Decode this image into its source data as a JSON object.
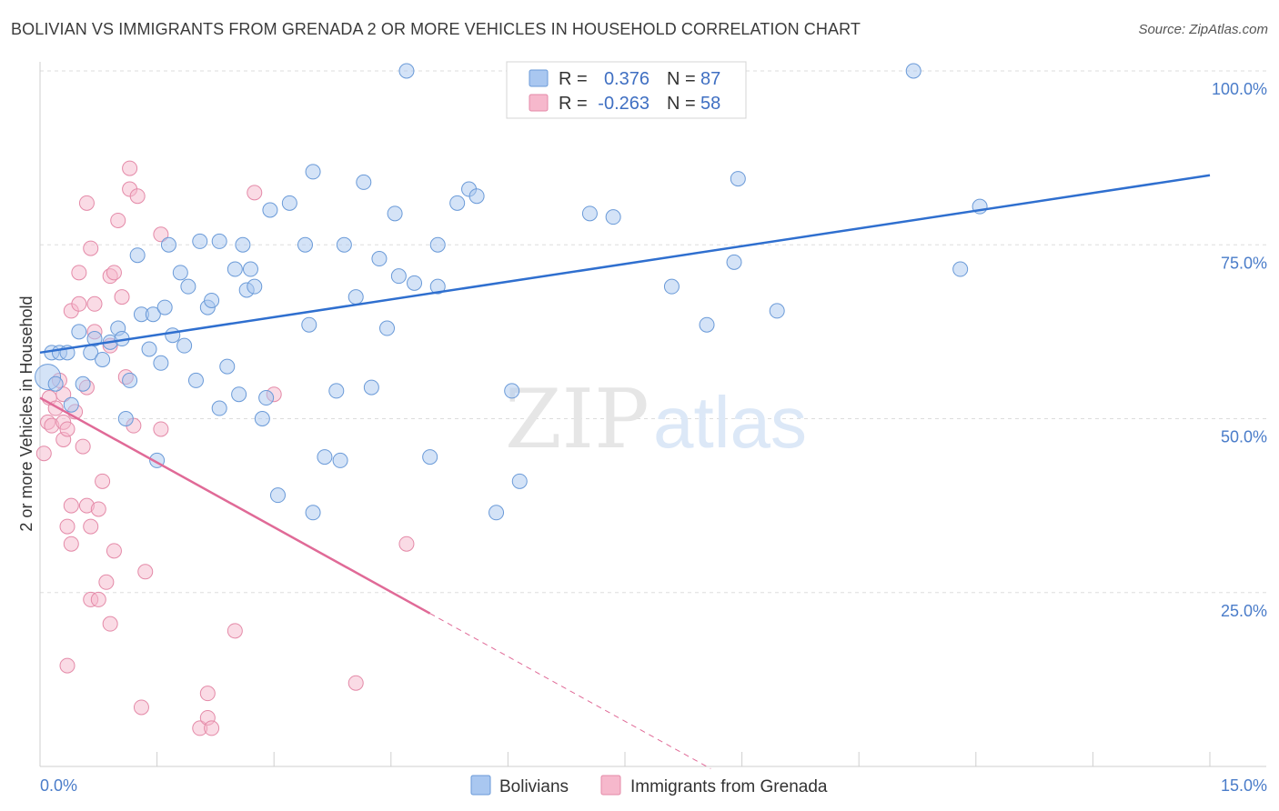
{
  "title": "BOLIVIAN VS IMMIGRANTS FROM GRENADA 2 OR MORE VEHICLES IN HOUSEHOLD CORRELATION CHART",
  "source": "Source: ZipAtlas.com",
  "colors": {
    "blue_fill": "#a9c7f0",
    "blue_stroke": "#6a9ad8",
    "blue_line": "#2f6fcf",
    "pink_fill": "#f6b8cc",
    "pink_stroke": "#e48aa8",
    "pink_line": "#e06a97",
    "grid": "#dddddd",
    "tick": "#4a7cc9"
  },
  "chart_data": {
    "type": "scatter",
    "title": "BOLIVIAN VS IMMIGRANTS FROM GRENADA 2 OR MORE VEHICLES IN HOUSEHOLD CORRELATION CHART",
    "xlabel": "",
    "ylabel": "2 or more Vehicles in Household",
    "xlim": [
      0,
      15
    ],
    "ylim": [
      0,
      100
    ],
    "x_tick_labels": [
      "0.0%",
      "15.0%"
    ],
    "y_tick_labels": [
      "25.0%",
      "50.0%",
      "75.0%",
      "100.0%"
    ],
    "y_ticks": [
      25,
      50,
      75,
      100
    ],
    "watermark": {
      "part1": "ZIP",
      "part2": "atlas"
    },
    "legend": {
      "r_label": "R =",
      "n_label": "N =",
      "entries": [
        {
          "r": "0.376",
          "n": "87"
        },
        {
          "r": "-0.263",
          "n": "58"
        }
      ]
    },
    "series": [
      {
        "name": "Bolivians",
        "color": "#a9c7f0",
        "trend": {
          "x0": 0.0,
          "y0": 59.5,
          "x1": 15.0,
          "y1": 85.0,
          "dash_to_x": 15.0
        },
        "points": [
          [
            0.1,
            56
          ],
          [
            0.15,
            59.5
          ],
          [
            0.2,
            55
          ],
          [
            0.25,
            59.5
          ],
          [
            0.35,
            59.5
          ],
          [
            0.4,
            52
          ],
          [
            0.5,
            62.5
          ],
          [
            0.55,
            55
          ],
          [
            0.65,
            59.5
          ],
          [
            0.7,
            61.5
          ],
          [
            0.8,
            58.5
          ],
          [
            0.9,
            61
          ],
          [
            1.0,
            63
          ],
          [
            1.05,
            61.5
          ],
          [
            1.1,
            50
          ],
          [
            1.15,
            55.5
          ],
          [
            1.25,
            73.5
          ],
          [
            1.3,
            65
          ],
          [
            1.4,
            60
          ],
          [
            1.45,
            65
          ],
          [
            1.5,
            44
          ],
          [
            1.55,
            58
          ],
          [
            1.6,
            66
          ],
          [
            1.65,
            75
          ],
          [
            1.7,
            62
          ],
          [
            1.8,
            71
          ],
          [
            1.85,
            60.5
          ],
          [
            1.9,
            69
          ],
          [
            2.0,
            55.5
          ],
          [
            2.05,
            75.5
          ],
          [
            2.15,
            66
          ],
          [
            2.2,
            67
          ],
          [
            2.3,
            51.5
          ],
          [
            2.3,
            75.5
          ],
          [
            2.4,
            57.5
          ],
          [
            2.5,
            71.5
          ],
          [
            2.55,
            53.5
          ],
          [
            2.6,
            75
          ],
          [
            2.65,
            68.5
          ],
          [
            2.7,
            71.5
          ],
          [
            2.75,
            69
          ],
          [
            2.85,
            50
          ],
          [
            2.9,
            53
          ],
          [
            2.95,
            80
          ],
          [
            3.05,
            39
          ],
          [
            3.2,
            81
          ],
          [
            3.4,
            75
          ],
          [
            3.45,
            63.5
          ],
          [
            3.5,
            85.5
          ],
          [
            3.5,
            36.5
          ],
          [
            3.65,
            44.5
          ],
          [
            3.8,
            54
          ],
          [
            3.85,
            44
          ],
          [
            3.9,
            75
          ],
          [
            4.05,
            67.5
          ],
          [
            4.15,
            84
          ],
          [
            4.25,
            54.5
          ],
          [
            4.35,
            73
          ],
          [
            4.45,
            63
          ],
          [
            4.55,
            79.5
          ],
          [
            4.6,
            70.5
          ],
          [
            4.7,
            100
          ],
          [
            4.8,
            69.5
          ],
          [
            5.0,
            44.5
          ],
          [
            5.1,
            75
          ],
          [
            5.1,
            69
          ],
          [
            5.35,
            81
          ],
          [
            5.5,
            83
          ],
          [
            5.6,
            82
          ],
          [
            5.85,
            36.5
          ],
          [
            6.05,
            54
          ],
          [
            6.15,
            41
          ],
          [
            7.05,
            79.5
          ],
          [
            7.35,
            79
          ],
          [
            8.1,
            69
          ],
          [
            8.55,
            63.5
          ],
          [
            8.9,
            72.5
          ],
          [
            8.95,
            84.5
          ],
          [
            9.45,
            65.5
          ],
          [
            11.2,
            100
          ],
          [
            11.8,
            71.5
          ],
          [
            12.05,
            80.5
          ]
        ],
        "sizes": {
          "default": 8,
          "big": [
            [
              0.1,
              56
            ]
          ]
        }
      },
      {
        "name": "Immigrants from Grenada",
        "color": "#f6b8cc",
        "trend": {
          "x0": 0.0,
          "y0": 53.0,
          "x1": 5.0,
          "y1": 22.0,
          "dash_to_x": 8.6
        },
        "points": [
          [
            0.05,
            45
          ],
          [
            0.1,
            49.5
          ],
          [
            0.12,
            53
          ],
          [
            0.15,
            49
          ],
          [
            0.2,
            51.5
          ],
          [
            0.25,
            55.5
          ],
          [
            0.3,
            47
          ],
          [
            0.3,
            49.5
          ],
          [
            0.3,
            53.5
          ],
          [
            0.35,
            34.5
          ],
          [
            0.35,
            48.5
          ],
          [
            0.35,
            14.5
          ],
          [
            0.4,
            37.5
          ],
          [
            0.4,
            32
          ],
          [
            0.4,
            65.5
          ],
          [
            0.45,
            51
          ],
          [
            0.5,
            71
          ],
          [
            0.5,
            66.5
          ],
          [
            0.55,
            46
          ],
          [
            0.6,
            37.5
          ],
          [
            0.6,
            54.5
          ],
          [
            0.6,
            81
          ],
          [
            0.65,
            74.5
          ],
          [
            0.65,
            34.5
          ],
          [
            0.65,
            24
          ],
          [
            0.7,
            66.5
          ],
          [
            0.7,
            62.5
          ],
          [
            0.75,
            37
          ],
          [
            0.75,
            24
          ],
          [
            0.8,
            41
          ],
          [
            0.85,
            26.5
          ],
          [
            0.9,
            60.5
          ],
          [
            0.9,
            70.5
          ],
          [
            0.9,
            20.5
          ],
          [
            0.95,
            31
          ],
          [
            0.95,
            71
          ],
          [
            1.0,
            78.5
          ],
          [
            1.05,
            67.5
          ],
          [
            1.1,
            56
          ],
          [
            1.15,
            86
          ],
          [
            1.15,
            83
          ],
          [
            1.2,
            49
          ],
          [
            1.25,
            82
          ],
          [
            1.3,
            8.5
          ],
          [
            1.35,
            28
          ],
          [
            1.55,
            76.5
          ],
          [
            1.55,
            48.5
          ],
          [
            2.05,
            5.5
          ],
          [
            2.15,
            7
          ],
          [
            2.15,
            10.5
          ],
          [
            2.2,
            5.5
          ],
          [
            2.5,
            19.5
          ],
          [
            2.75,
            82.5
          ],
          [
            3.0,
            53.5
          ],
          [
            4.05,
            12
          ],
          [
            4.7,
            32
          ]
        ],
        "sizes": {
          "default": 8
        }
      }
    ]
  }
}
